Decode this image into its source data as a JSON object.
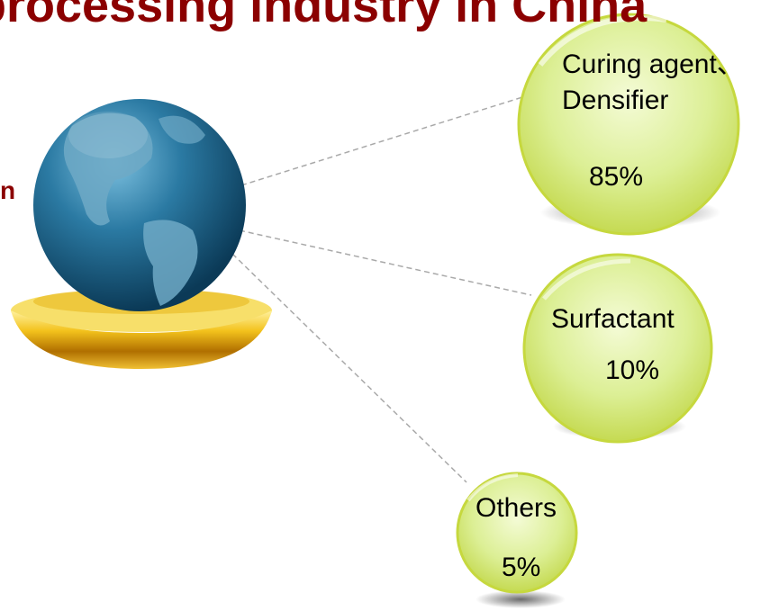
{
  "slide": {
    "title": "processing industry in China",
    "side_text": "n",
    "colors": {
      "title": "#8b0000",
      "bubble_fill": "#d8ec8c",
      "bubble_edge": "#c6d83e",
      "connector": "#a9a9a9",
      "stand_gold": "#e9a400",
      "globe": "#1d6b8f"
    }
  },
  "bubbles": [
    {
      "label_line1": "Curing agent、",
      "label_line2": "Densifier",
      "percent": "85%",
      "share": 85
    },
    {
      "label_line1": "Surfactant",
      "percent": "10%",
      "share": 10
    },
    {
      "label_line1": "Others",
      "percent": "5%",
      "share": 5
    }
  ]
}
